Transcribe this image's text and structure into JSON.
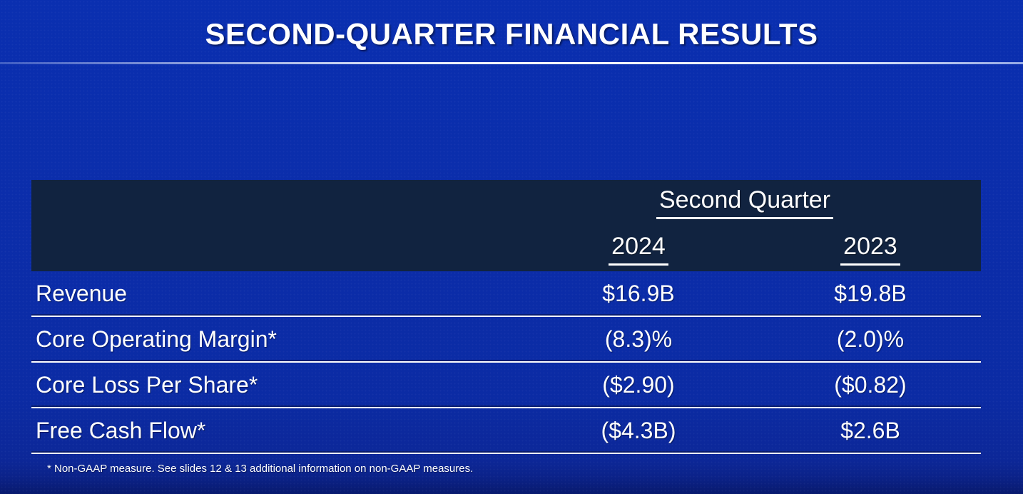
{
  "slide": {
    "title": "SECOND-QUARTER FINANCIAL RESULTS",
    "footnote": "* Non-GAAP measure. See slides 12 & 13 additional information on non-GAAP measures."
  },
  "table": {
    "group_header": "Second Quarter",
    "columns": [
      "2024",
      "2023"
    ],
    "rows": [
      {
        "label": "Revenue",
        "values": [
          "$16.9B",
          "$19.8B"
        ]
      },
      {
        "label": "Core Operating Margin*",
        "values": [
          "(8.3)%",
          "(2.0)%"
        ]
      },
      {
        "label": "Core Loss Per Share*",
        "values": [
          "($2.90)",
          "($0.82)"
        ]
      },
      {
        "label": "Free Cash Flow*",
        "values": [
          "($4.3B)",
          "$2.6B"
        ]
      }
    ]
  },
  "colors": {
    "background_top": "#0a2fb0",
    "background_bottom": "#081a6e",
    "table_header_background": "#112340",
    "text": "#ffffff",
    "separator_line": "#ffffff"
  }
}
